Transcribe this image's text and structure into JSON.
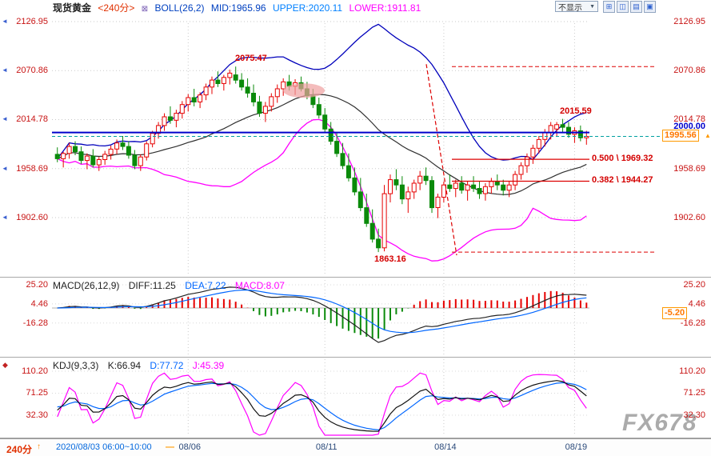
{
  "header": {
    "symbol": "现货黄金",
    "period": "<240分>",
    "boll": {
      "title": "BOLL(26,2)",
      "mid": "MID:1965.96",
      "upper": "UPPER:2020.11",
      "lower": "LOWER:1911.81"
    }
  },
  "toolbar": {
    "display_select": "不显示",
    "window_buttons": [
      {
        "glyph": "⊞",
        "name": "tile-windows"
      },
      {
        "glyph": "◫",
        "name": "split-vertical"
      },
      {
        "glyph": "▤",
        "name": "split-horizontal"
      },
      {
        "glyph": "▣",
        "name": "cascade-windows"
      }
    ]
  },
  "main_panel": {
    "annotations": {
      "peak": 2075.47,
      "swing_high": 2015.59,
      "swing_low": 1863.16,
      "hline": 2000.0,
      "current": 1995.56,
      "fib": [
        {
          "text": "0.500 \\ 1969.32",
          "value": 1969.32
        },
        {
          "text": "0.382 \\ 1944.27",
          "value": 1944.27
        }
      ]
    }
  },
  "macd_panel": {
    "title": "MACD(26,12,9)",
    "diff": "DIFF:11.25",
    "dea": "DEA:7.22",
    "macd": "MACD:8.07",
    "axis_values": [
      "25.20",
      "4.46",
      "-16.28"
    ],
    "current_box": "-5.20"
  },
  "kdj_panel": {
    "title": "KDJ(9,3,3)",
    "k": "K:66.94",
    "d": "D:77.72",
    "j": "J:45.39",
    "axis_values": [
      "110.20",
      "71.25",
      "32.30"
    ]
  },
  "bottom": {
    "period": "240分",
    "arrow": "↑",
    "session": "2020/08/03 06:00~10:00",
    "dash": "—",
    "date_ticks": [
      {
        "label": "08/06",
        "index": 22
      },
      {
        "label": "08/11",
        "index": 45
      },
      {
        "label": "08/14",
        "index": 65
      },
      {
        "label": "08/19",
        "index": 87
      }
    ]
  },
  "watermark": "FX678",
  "colors": {
    "up": "#e60000",
    "down": "#0a8a0a",
    "boll_upper": "#0000bb",
    "boll_mid": "#303030",
    "boll_lower": "#ff00ff",
    "hline": "#0000cc",
    "current_line": "#00a0a0",
    "fib": "#dd0000",
    "highlight_ellipse": "#f0a0a0"
  },
  "chart_data": [
    {
      "type": "candlestick",
      "panel": "main",
      "title": "现货黄金 240分",
      "overlay": "BOLL(26,2)",
      "boll_current": {
        "mid": 1965.96,
        "upper": 2020.11,
        "lower": 1911.81
      },
      "y_ticks": [
        2126.95,
        2070.86,
        2014.78,
        1958.69,
        1902.6
      ],
      "x_tick_labels": [
        "08/06",
        "08/11",
        "08/14",
        "08/19"
      ],
      "x_tick_indices": [
        22,
        45,
        65,
        87
      ],
      "ohlc": [
        [
          1975,
          1983,
          1966,
          1970
        ],
        [
          1970,
          1978,
          1960,
          1976
        ],
        [
          1976,
          1988,
          1970,
          1984
        ],
        [
          1984,
          1990,
          1974,
          1978
        ],
        [
          1978,
          1984,
          1964,
          1968
        ],
        [
          1968,
          1976,
          1958,
          1973
        ],
        [
          1973,
          1981,
          1960,
          1963
        ],
        [
          1963,
          1972,
          1956,
          1969
        ],
        [
          1969,
          1979,
          1963,
          1975
        ],
        [
          1975,
          1985,
          1969,
          1981
        ],
        [
          1981,
          1992,
          1975,
          1988
        ],
        [
          1988,
          1996,
          1980,
          1984
        ],
        [
          1984,
          1990,
          1970,
          1974
        ],
        [
          1974,
          1980,
          1958,
          1962
        ],
        [
          1962,
          1975,
          1956,
          1972
        ],
        [
          1972,
          1990,
          1968,
          1987
        ],
        [
          1987,
          2002,
          1983,
          1999
        ],
        [
          1999,
          2012,
          1993,
          2008
        ],
        [
          2008,
          2022,
          2002,
          2018
        ],
        [
          2018,
          2030,
          2010,
          2014
        ],
        [
          2014,
          2026,
          2006,
          2022
        ],
        [
          2022,
          2036,
          2016,
          2032
        ],
        [
          2032,
          2044,
          2024,
          2040
        ],
        [
          2040,
          2050,
          2030,
          2035
        ],
        [
          2035,
          2046,
          2028,
          2043
        ],
        [
          2043,
          2056,
          2037,
          2052
        ],
        [
          2052,
          2064,
          2044,
          2060
        ],
        [
          2060,
          2070,
          2052,
          2056
        ],
        [
          2056,
          2066,
          2048,
          2063
        ],
        [
          2063,
          2072,
          2055,
          2068
        ],
        [
          2066,
          2075.47,
          2056,
          2060
        ],
        [
          2060,
          2068,
          2048,
          2052
        ],
        [
          2052,
          2062,
          2040,
          2045
        ],
        [
          2045,
          2055,
          2030,
          2035
        ],
        [
          2035,
          2042,
          2018,
          2022
        ],
        [
          2022,
          2035,
          2012,
          2030
        ],
        [
          2030,
          2045,
          2024,
          2041
        ],
        [
          2041,
          2055,
          2034,
          2050
        ],
        [
          2050,
          2062,
          2042,
          2058
        ],
        [
          2058,
          2066,
          2048,
          2053
        ],
        [
          2053,
          2061,
          2043,
          2057
        ],
        [
          2057,
          2064,
          2047,
          2050
        ],
        [
          2050,
          2058,
          2038,
          2042
        ],
        [
          2042,
          2050,
          2028,
          2032
        ],
        [
          2032,
          2040,
          2016,
          2020
        ],
        [
          2020,
          2028,
          2000,
          2004
        ],
        [
          2004,
          2012,
          1986,
          1990
        ],
        [
          1990,
          2000,
          1972,
          1976
        ],
        [
          1976,
          1988,
          1958,
          1962
        ],
        [
          1962,
          1976,
          1944,
          1948
        ],
        [
          1948,
          1960,
          1928,
          1932
        ],
        [
          1932,
          1948,
          1910,
          1914
        ],
        [
          1914,
          1930,
          1892,
          1896
        ],
        [
          1896,
          1912,
          1874,
          1878
        ],
        [
          1878,
          1890,
          1863.16,
          1868
        ],
        [
          1868,
          1940,
          1864,
          1930
        ],
        [
          1930,
          1952,
          1920,
          1946
        ],
        [
          1946,
          1958,
          1934,
          1940
        ],
        [
          1940,
          1950,
          1918,
          1924
        ],
        [
          1924,
          1938,
          1908,
          1932
        ],
        [
          1932,
          1946,
          1924,
          1942
        ],
        [
          1942,
          1956,
          1934,
          1950
        ],
        [
          1950,
          1960,
          1940,
          1945
        ],
        [
          1945,
          1950,
          1908,
          1914
        ],
        [
          1914,
          1930,
          1902,
          1926
        ],
        [
          1926,
          1944,
          1920,
          1940
        ],
        [
          1940,
          1952,
          1932,
          1936
        ],
        [
          1936,
          1946,
          1926,
          1942
        ],
        [
          1942,
          1950,
          1930,
          1934
        ],
        [
          1934,
          1944,
          1922,
          1940
        ],
        [
          1940,
          1950,
          1932,
          1936
        ],
        [
          1936,
          1944,
          1924,
          1930
        ],
        [
          1930,
          1942,
          1922,
          1938
        ],
        [
          1938,
          1948,
          1930,
          1944
        ],
        [
          1944,
          1952,
          1934,
          1940
        ],
        [
          1940,
          1946,
          1928,
          1934
        ],
        [
          1934,
          1944,
          1926,
          1940
        ],
        [
          1940,
          1956,
          1934,
          1952
        ],
        [
          1952,
          1966,
          1946,
          1962
        ],
        [
          1962,
          1976,
          1954,
          1972
        ],
        [
          1972,
          1986,
          1964,
          1982
        ],
        [
          1982,
          1996,
          1976,
          1992
        ],
        [
          1992,
          2004,
          1984,
          2000
        ],
        [
          2000,
          2012,
          1992,
          2008
        ],
        [
          2004,
          2012,
          1996,
          2009
        ],
        [
          2009,
          2015.59,
          2000,
          2006
        ],
        [
          2006,
          2012,
          1994,
          1998
        ],
        [
          1998,
          2006,
          1988,
          2002
        ],
        [
          2002,
          2008,
          1990,
          1994
        ],
        [
          1994,
          2002,
          1986,
          1995.56
        ]
      ]
    },
    {
      "type": "bar",
      "panel": "macd",
      "title": "MACD(26,12,9)",
      "params": [
        26,
        12,
        9
      ],
      "current": {
        "diff": 11.25,
        "dea": 7.22,
        "macd": 8.07
      },
      "y_ticks": [
        25.2,
        4.46,
        -16.28
      ],
      "derived_from": "ohlc closes (EMA12-EMA26, DEA=EMA9 of DIFF, bar=2*(DIFF-DEA))"
    },
    {
      "type": "line",
      "panel": "kdj",
      "title": "KDJ(9,3,3)",
      "params": [
        9,
        3,
        3
      ],
      "current": {
        "k": 66.94,
        "d": 77.72,
        "j": 45.39
      },
      "y_ticks": [
        110.2,
        71.25,
        32.3
      ],
      "derived_from": "ohlc (RSV 9, K/D smoothing 3,3, J=3K-2D)"
    }
  ]
}
